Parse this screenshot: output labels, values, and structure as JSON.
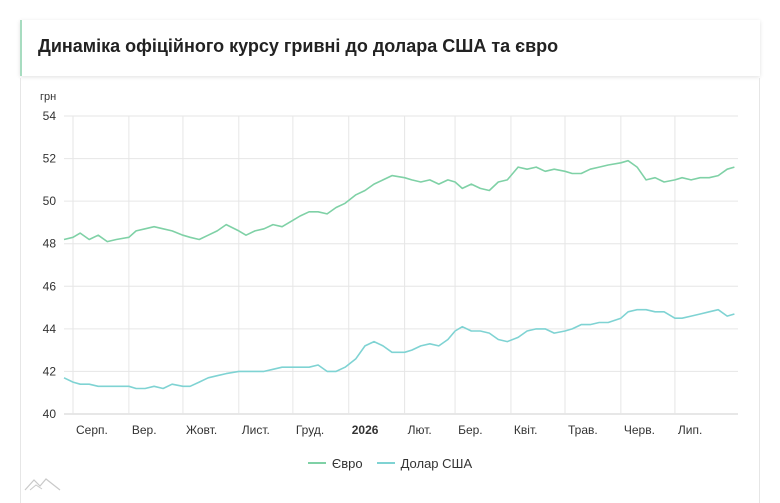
{
  "header": {
    "title": "Динаміка офіційного курсу гривні до долара США та євро"
  },
  "chart_data": {
    "type": "line",
    "ylabel": "грн",
    "ylim": [
      40,
      54
    ],
    "yticks": [
      40,
      42,
      44,
      46,
      48,
      50,
      52,
      54
    ],
    "grid": true,
    "legend_position": "bottom",
    "x_start": "2025-07-27",
    "x_end": "2026-08-05",
    "month_ticks": [
      {
        "label": "Серп.",
        "date": "2025-08-01",
        "bold": false
      },
      {
        "label": "Вер.",
        "date": "2025-09-01",
        "bold": false
      },
      {
        "label": "Жовт.",
        "date": "2025-10-01",
        "bold": false
      },
      {
        "label": "Лист.",
        "date": "2025-11-01",
        "bold": false
      },
      {
        "label": "Груд.",
        "date": "2025-12-01",
        "bold": false
      },
      {
        "label": "2026",
        "date": "2026-01-01",
        "bold": true
      },
      {
        "label": "Лют.",
        "date": "2026-02-01",
        "bold": false
      },
      {
        "label": "Бер.",
        "date": "2026-03-01",
        "bold": false
      },
      {
        "label": "Квіт.",
        "date": "2026-04-01",
        "bold": false
      },
      {
        "label": "Трав.",
        "date": "2026-05-01",
        "bold": false
      },
      {
        "label": "Черв.",
        "date": "2026-06-01",
        "bold": false
      },
      {
        "label": "Лип.",
        "date": "2026-07-01",
        "bold": false
      }
    ],
    "series": [
      {
        "name": "Євро",
        "color": "#7fd1a6",
        "points": [
          [
            "2025-07-27",
            48.2
          ],
          [
            "2025-08-01",
            48.3
          ],
          [
            "2025-08-05",
            48.5
          ],
          [
            "2025-08-10",
            48.2
          ],
          [
            "2025-08-15",
            48.4
          ],
          [
            "2025-08-20",
            48.1
          ],
          [
            "2025-08-25",
            48.2
          ],
          [
            "2025-09-01",
            48.3
          ],
          [
            "2025-09-05",
            48.6
          ],
          [
            "2025-09-10",
            48.7
          ],
          [
            "2025-09-15",
            48.8
          ],
          [
            "2025-09-20",
            48.7
          ],
          [
            "2025-09-25",
            48.6
          ],
          [
            "2025-10-01",
            48.4
          ],
          [
            "2025-10-05",
            48.3
          ],
          [
            "2025-10-10",
            48.2
          ],
          [
            "2025-10-15",
            48.4
          ],
          [
            "2025-10-20",
            48.6
          ],
          [
            "2025-10-25",
            48.9
          ],
          [
            "2025-11-01",
            48.6
          ],
          [
            "2025-11-05",
            48.4
          ],
          [
            "2025-11-10",
            48.6
          ],
          [
            "2025-11-15",
            48.7
          ],
          [
            "2025-11-20",
            48.9
          ],
          [
            "2025-11-25",
            48.8
          ],
          [
            "2025-12-01",
            49.1
          ],
          [
            "2025-12-05",
            49.3
          ],
          [
            "2025-12-10",
            49.5
          ],
          [
            "2025-12-15",
            49.5
          ],
          [
            "2025-12-20",
            49.4
          ],
          [
            "2025-12-25",
            49.7
          ],
          [
            "2025-12-30",
            49.9
          ],
          [
            "2026-01-05",
            50.3
          ],
          [
            "2026-01-10",
            50.5
          ],
          [
            "2026-01-15",
            50.8
          ],
          [
            "2026-01-20",
            51.0
          ],
          [
            "2026-01-25",
            51.2
          ],
          [
            "2026-02-01",
            51.1
          ],
          [
            "2026-02-05",
            51.0
          ],
          [
            "2026-02-10",
            50.9
          ],
          [
            "2026-02-15",
            51.0
          ],
          [
            "2026-02-20",
            50.8
          ],
          [
            "2026-02-25",
            51.0
          ],
          [
            "2026-03-01",
            50.9
          ],
          [
            "2026-03-05",
            50.6
          ],
          [
            "2026-03-10",
            50.8
          ],
          [
            "2026-03-15",
            50.6
          ],
          [
            "2026-03-20",
            50.5
          ],
          [
            "2026-03-25",
            50.9
          ],
          [
            "2026-03-30",
            51.0
          ],
          [
            "2026-04-05",
            51.6
          ],
          [
            "2026-04-10",
            51.5
          ],
          [
            "2026-04-15",
            51.6
          ],
          [
            "2026-04-20",
            51.4
          ],
          [
            "2026-04-25",
            51.5
          ],
          [
            "2026-05-01",
            51.4
          ],
          [
            "2026-05-05",
            51.3
          ],
          [
            "2026-05-10",
            51.3
          ],
          [
            "2026-05-15",
            51.5
          ],
          [
            "2026-05-20",
            51.6
          ],
          [
            "2026-05-25",
            51.7
          ],
          [
            "2026-06-01",
            51.8
          ],
          [
            "2026-06-05",
            51.9
          ],
          [
            "2026-06-10",
            51.6
          ],
          [
            "2026-06-15",
            51.0
          ],
          [
            "2026-06-20",
            51.1
          ],
          [
            "2026-06-25",
            50.9
          ],
          [
            "2026-07-01",
            51.0
          ],
          [
            "2026-07-05",
            51.1
          ],
          [
            "2026-07-10",
            51.0
          ],
          [
            "2026-07-15",
            51.1
          ],
          [
            "2026-07-20",
            51.1
          ],
          [
            "2026-07-25",
            51.2
          ],
          [
            "2026-07-30",
            51.5
          ],
          [
            "2026-08-03",
            51.6
          ]
        ]
      },
      {
        "name": "Долар США",
        "color": "#7fd3d3",
        "points": [
          [
            "2025-07-27",
            41.7
          ],
          [
            "2025-08-01",
            41.5
          ],
          [
            "2025-08-05",
            41.4
          ],
          [
            "2025-08-10",
            41.4
          ],
          [
            "2025-08-15",
            41.3
          ],
          [
            "2025-08-20",
            41.3
          ],
          [
            "2025-08-25",
            41.3
          ],
          [
            "2025-09-01",
            41.3
          ],
          [
            "2025-09-05",
            41.2
          ],
          [
            "2025-09-10",
            41.2
          ],
          [
            "2025-09-15",
            41.3
          ],
          [
            "2025-09-20",
            41.2
          ],
          [
            "2025-09-25",
            41.4
          ],
          [
            "2025-10-01",
            41.3
          ],
          [
            "2025-10-05",
            41.3
          ],
          [
            "2025-10-10",
            41.5
          ],
          [
            "2025-10-15",
            41.7
          ],
          [
            "2025-10-20",
            41.8
          ],
          [
            "2025-10-25",
            41.9
          ],
          [
            "2025-11-01",
            42.0
          ],
          [
            "2025-11-05",
            42.0
          ],
          [
            "2025-11-10",
            42.0
          ],
          [
            "2025-11-15",
            42.0
          ],
          [
            "2025-11-20",
            42.1
          ],
          [
            "2025-11-25",
            42.2
          ],
          [
            "2025-12-01",
            42.2
          ],
          [
            "2025-12-05",
            42.2
          ],
          [
            "2025-12-10",
            42.2
          ],
          [
            "2025-12-15",
            42.3
          ],
          [
            "2025-12-20",
            42.0
          ],
          [
            "2025-12-25",
            42.0
          ],
          [
            "2025-12-30",
            42.2
          ],
          [
            "2026-01-05",
            42.6
          ],
          [
            "2026-01-10",
            43.2
          ],
          [
            "2026-01-15",
            43.4
          ],
          [
            "2026-01-20",
            43.2
          ],
          [
            "2026-01-25",
            42.9
          ],
          [
            "2026-02-01",
            42.9
          ],
          [
            "2026-02-05",
            43.0
          ],
          [
            "2026-02-10",
            43.2
          ],
          [
            "2026-02-15",
            43.3
          ],
          [
            "2026-02-20",
            43.2
          ],
          [
            "2026-02-25",
            43.5
          ],
          [
            "2026-03-01",
            43.9
          ],
          [
            "2026-03-05",
            44.1
          ],
          [
            "2026-03-10",
            43.9
          ],
          [
            "2026-03-15",
            43.9
          ],
          [
            "2026-03-20",
            43.8
          ],
          [
            "2026-03-25",
            43.5
          ],
          [
            "2026-03-30",
            43.4
          ],
          [
            "2026-04-05",
            43.6
          ],
          [
            "2026-04-10",
            43.9
          ],
          [
            "2026-04-15",
            44.0
          ],
          [
            "2026-04-20",
            44.0
          ],
          [
            "2026-04-25",
            43.8
          ],
          [
            "2026-05-01",
            43.9
          ],
          [
            "2026-05-05",
            44.0
          ],
          [
            "2026-05-10",
            44.2
          ],
          [
            "2026-05-15",
            44.2
          ],
          [
            "2026-05-20",
            44.3
          ],
          [
            "2026-05-25",
            44.3
          ],
          [
            "2026-06-01",
            44.5
          ],
          [
            "2026-06-05",
            44.8
          ],
          [
            "2026-06-10",
            44.9
          ],
          [
            "2026-06-15",
            44.9
          ],
          [
            "2026-06-20",
            44.8
          ],
          [
            "2026-06-25",
            44.8
          ],
          [
            "2026-07-01",
            44.5
          ],
          [
            "2026-07-05",
            44.5
          ],
          [
            "2026-07-10",
            44.6
          ],
          [
            "2026-07-15",
            44.7
          ],
          [
            "2026-07-20",
            44.8
          ],
          [
            "2026-07-25",
            44.9
          ],
          [
            "2026-07-30",
            44.6
          ],
          [
            "2026-08-03",
            44.7
          ]
        ]
      }
    ]
  }
}
